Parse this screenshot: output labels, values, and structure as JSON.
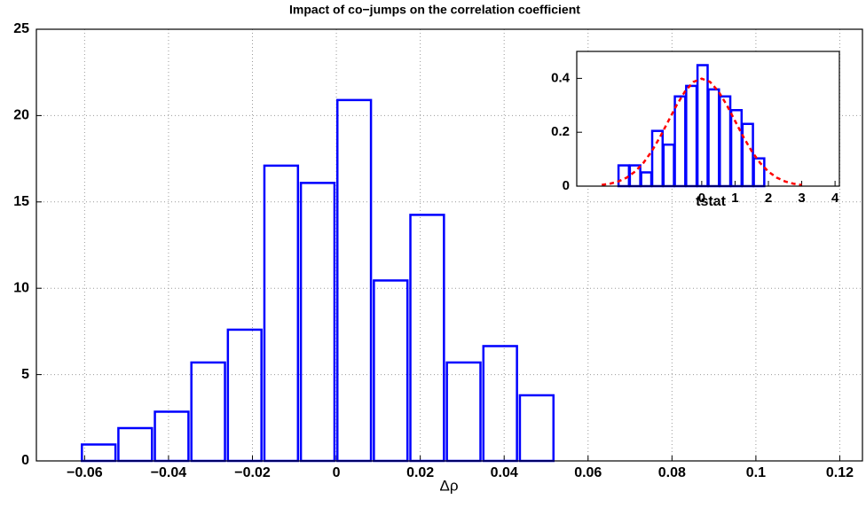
{
  "chart_data": [
    {
      "type": "histogram",
      "title": "Impact of co−jumps on the correlation coefficient",
      "x_label": "Δρ",
      "bins": [
        -0.061,
        -0.0523,
        -0.0436,
        -0.0349,
        -0.0262,
        -0.0175,
        -0.0088,
        -0.0001,
        0.0086,
        0.0173,
        0.026,
        0.0347,
        0.0434,
        0.0521
      ],
      "values": [
        0.95,
        1.9,
        2.85,
        5.7,
        7.6,
        17.1,
        16.1,
        20.9,
        10.45,
        14.25,
        5.7,
        6.65,
        3.8
      ],
      "color": "#0000ff",
      "xlim": [
        -0.0715,
        0.1254
      ],
      "xticks": [
        {
          "value": -0.06,
          "label": "−0.06"
        },
        {
          "value": -0.04,
          "label": "−0.04"
        },
        {
          "value": -0.02,
          "label": "−0.02"
        },
        0,
        0.02,
        0.04,
        0.06,
        0.08,
        0.1,
        0.12
      ],
      "ylim": [
        0,
        25
      ],
      "yticks": [
        0,
        5,
        10,
        15,
        20,
        25
      ],
      "grid": true
    },
    {
      "type": "histogram",
      "x_label": "tstat",
      "bins": [
        -2.51,
        -2.17,
        -1.83,
        -1.5,
        -1.16,
        -0.82,
        -0.48,
        -0.14,
        0.19,
        0.53,
        0.87,
        1.21,
        1.55,
        1.89
      ],
      "values": [
        0.077,
        0.077,
        0.051,
        0.205,
        0.154,
        0.333,
        0.372,
        0.449,
        0.359,
        0.333,
        0.282,
        0.231,
        0.103
      ],
      "color": "#0000ff",
      "line": {
        "x": [
          -3,
          -2.75,
          -2.5,
          -2.25,
          -2,
          -1.75,
          -1.5,
          -1.25,
          -1,
          -0.75,
          -0.5,
          -0.25,
          0,
          0.25,
          0.5,
          0.75,
          1,
          1.25,
          1.5,
          1.75,
          2,
          2.25,
          2.5,
          2.75,
          3
        ],
        "values": [
          0.0044,
          0.0091,
          0.0175,
          0.0317,
          0.054,
          0.0863,
          0.1295,
          0.1826,
          0.242,
          0.3011,
          0.352,
          0.3867,
          0.399,
          0.3867,
          0.352,
          0.3011,
          0.242,
          0.1826,
          0.1295,
          0.0863,
          0.054,
          0.0317,
          0.0175,
          0.0091,
          0.0044
        ],
        "color": "#ff0000"
      },
      "xlim": [
        -3.75,
        4.13
      ],
      "xticks": [
        0,
        1,
        2,
        3,
        4
      ],
      "ylim": [
        0,
        0.5
      ],
      "yticks": [
        0,
        0.2,
        0.4
      ],
      "grid": false
    }
  ]
}
